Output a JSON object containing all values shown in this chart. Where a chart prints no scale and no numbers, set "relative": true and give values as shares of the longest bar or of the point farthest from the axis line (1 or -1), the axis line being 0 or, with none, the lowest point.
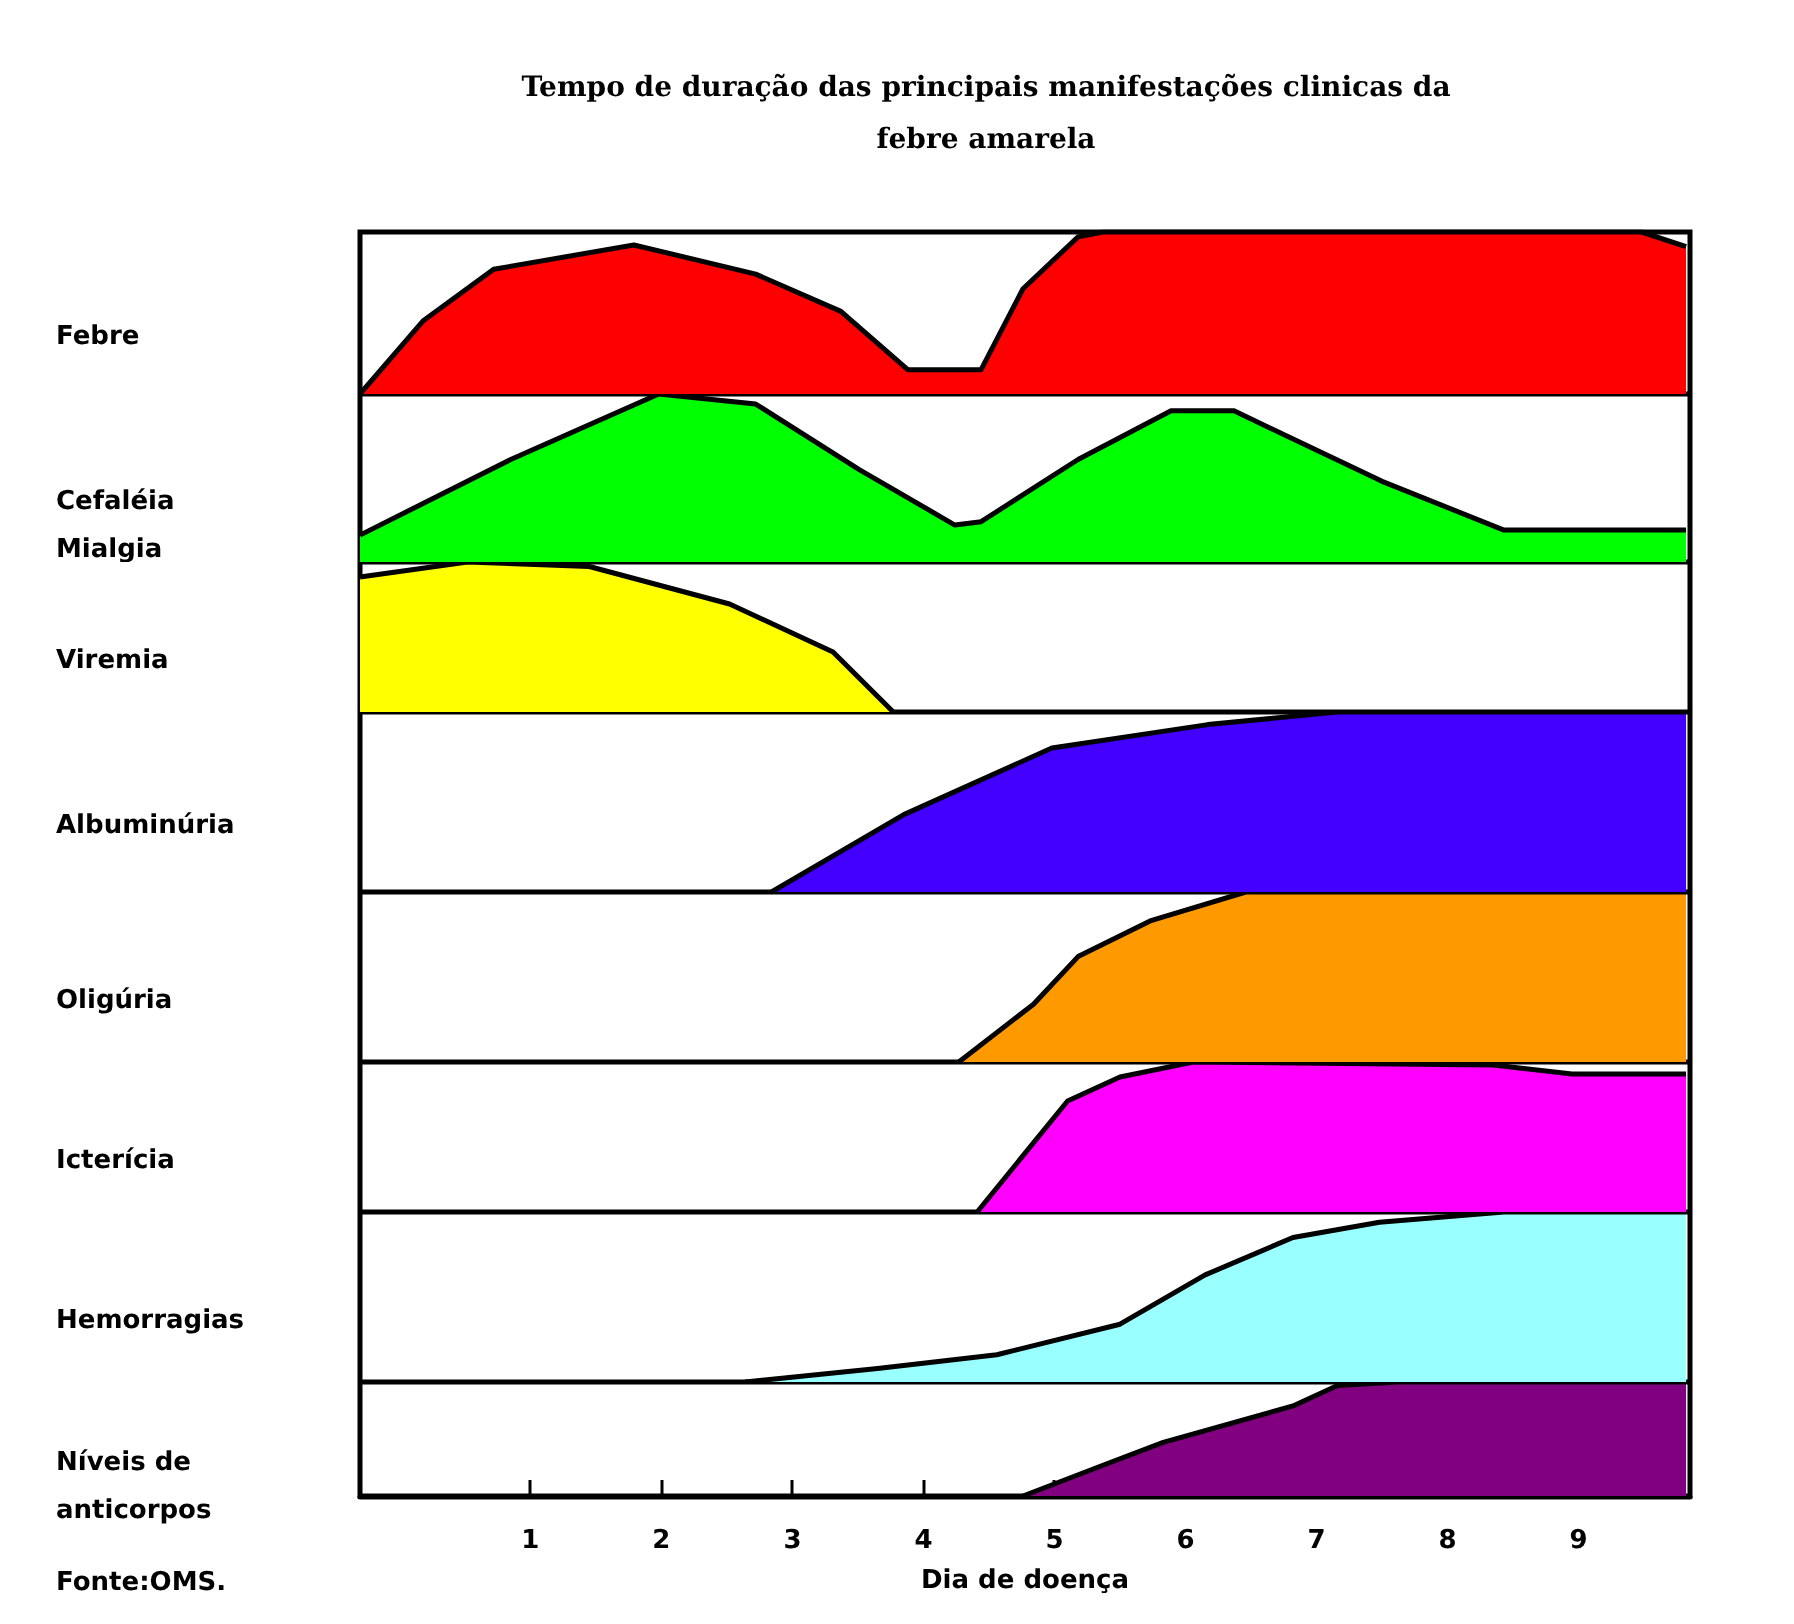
{
  "chart_data": [
    {
      "type": "area",
      "title": "Tempo de duração das principais manifestações clinicas da\nfebre amarela",
      "ylabel": "Febre",
      "relative": true,
      "color": "#ff0000",
      "xlim": [
        -0.3,
        9.85
      ],
      "tick_labels": false,
      "x": [
        -0.3,
        0.18,
        0.72,
        1.79,
        2.72,
        3.37,
        3.88,
        4.44,
        4.76,
        5.18,
        5.37,
        9.48,
        9.82
      ],
      "values": [
        0,
        0.45,
        0.77,
        0.92,
        0.74,
        0.51,
        0.15,
        0.15,
        0.65,
        0.97,
        1,
        1,
        0.91
      ]
    },
    {
      "type": "area",
      "ylabel": "Cefaléia\nMialgia",
      "relative": true,
      "color": "#00ff00",
      "xlim": [
        -0.3,
        9.85
      ],
      "tick_labels": false,
      "x": [
        -0.3,
        0.85,
        1.98,
        2.72,
        3.51,
        4.24,
        4.44,
        5.18,
        5.89,
        6.37,
        7.5,
        8.43,
        9.82
      ],
      "values": [
        0.16,
        0.61,
        1,
        0.94,
        0.55,
        0.22,
        0.24,
        0.61,
        0.9,
        0.9,
        0.48,
        0.19,
        0.19
      ]
    },
    {
      "type": "area",
      "ylabel": "Viremia",
      "relative": true,
      "color": "#ffff00",
      "xlim": [
        -0.3,
        9.85
      ],
      "tick_labels": false,
      "x": [
        -0.3,
        0.52,
        1.45,
        2.52,
        3.31,
        3.77
      ],
      "values": [
        0.9,
        1,
        0.97,
        0.72,
        0.4,
        0
      ]
    },
    {
      "type": "area",
      "ylabel": "Albuminúria",
      "relative": true,
      "color": "#4400ff",
      "xlim": [
        -0.3,
        9.85
      ],
      "tick_labels": false,
      "x": [
        2.84,
        3.85,
        4.98,
        6.17,
        7.16,
        9.82
      ],
      "values": [
        0,
        0.43,
        0.8,
        0.93,
        1,
        1
      ]
    },
    {
      "type": "area",
      "ylabel": "Oligúria",
      "relative": true,
      "color": "#ff9900",
      "xlim": [
        -0.3,
        9.85
      ],
      "tick_labels": false,
      "x": [
        4.27,
        4.84,
        5.18,
        5.73,
        6.46,
        9.82
      ],
      "values": [
        0,
        0.34,
        0.62,
        0.83,
        1,
        1
      ]
    },
    {
      "type": "area",
      "ylabel": "Icterícia",
      "relative": true,
      "color": "#ff00ff",
      "xlim": [
        -0.3,
        9.85
      ],
      "tick_labels": false,
      "x": [
        4.41,
        5.1,
        5.5,
        6.06,
        8.35,
        8.95,
        9.82
      ],
      "values": [
        0,
        0.74,
        0.9,
        1,
        0.98,
        0.92,
        0.92
      ]
    },
    {
      "type": "area",
      "ylabel": "Hemorragias",
      "relative": true,
      "color": "#99ffff",
      "xlim": [
        -0.3,
        9.85
      ],
      "tick_labels": false,
      "x": [
        2.64,
        3.65,
        4.56,
        5.5,
        6.15,
        6.82,
        7.48,
        8.43,
        9.82
      ],
      "values": [
        0,
        0.08,
        0.16,
        0.34,
        0.63,
        0.85,
        0.94,
        1,
        1
      ]
    },
    {
      "type": "area",
      "ylabel": "Níveis de\nanticorpos",
      "xlabel": "Dia de doença",
      "annotations": [
        "Fonte:OMS."
      ],
      "relative": true,
      "color": "#800080",
      "xlim": [
        -0.3,
        9.85
      ],
      "xticks": [
        1,
        2,
        3,
        4,
        5,
        6,
        7,
        8,
        9
      ],
      "tick_labels": "x",
      "x": [
        4.76,
        5.37,
        5.83,
        6.82,
        7.16,
        7.62,
        9.82
      ],
      "values": [
        0,
        0.27,
        0.47,
        0.79,
        0.97,
        1,
        1
      ]
    }
  ]
}
